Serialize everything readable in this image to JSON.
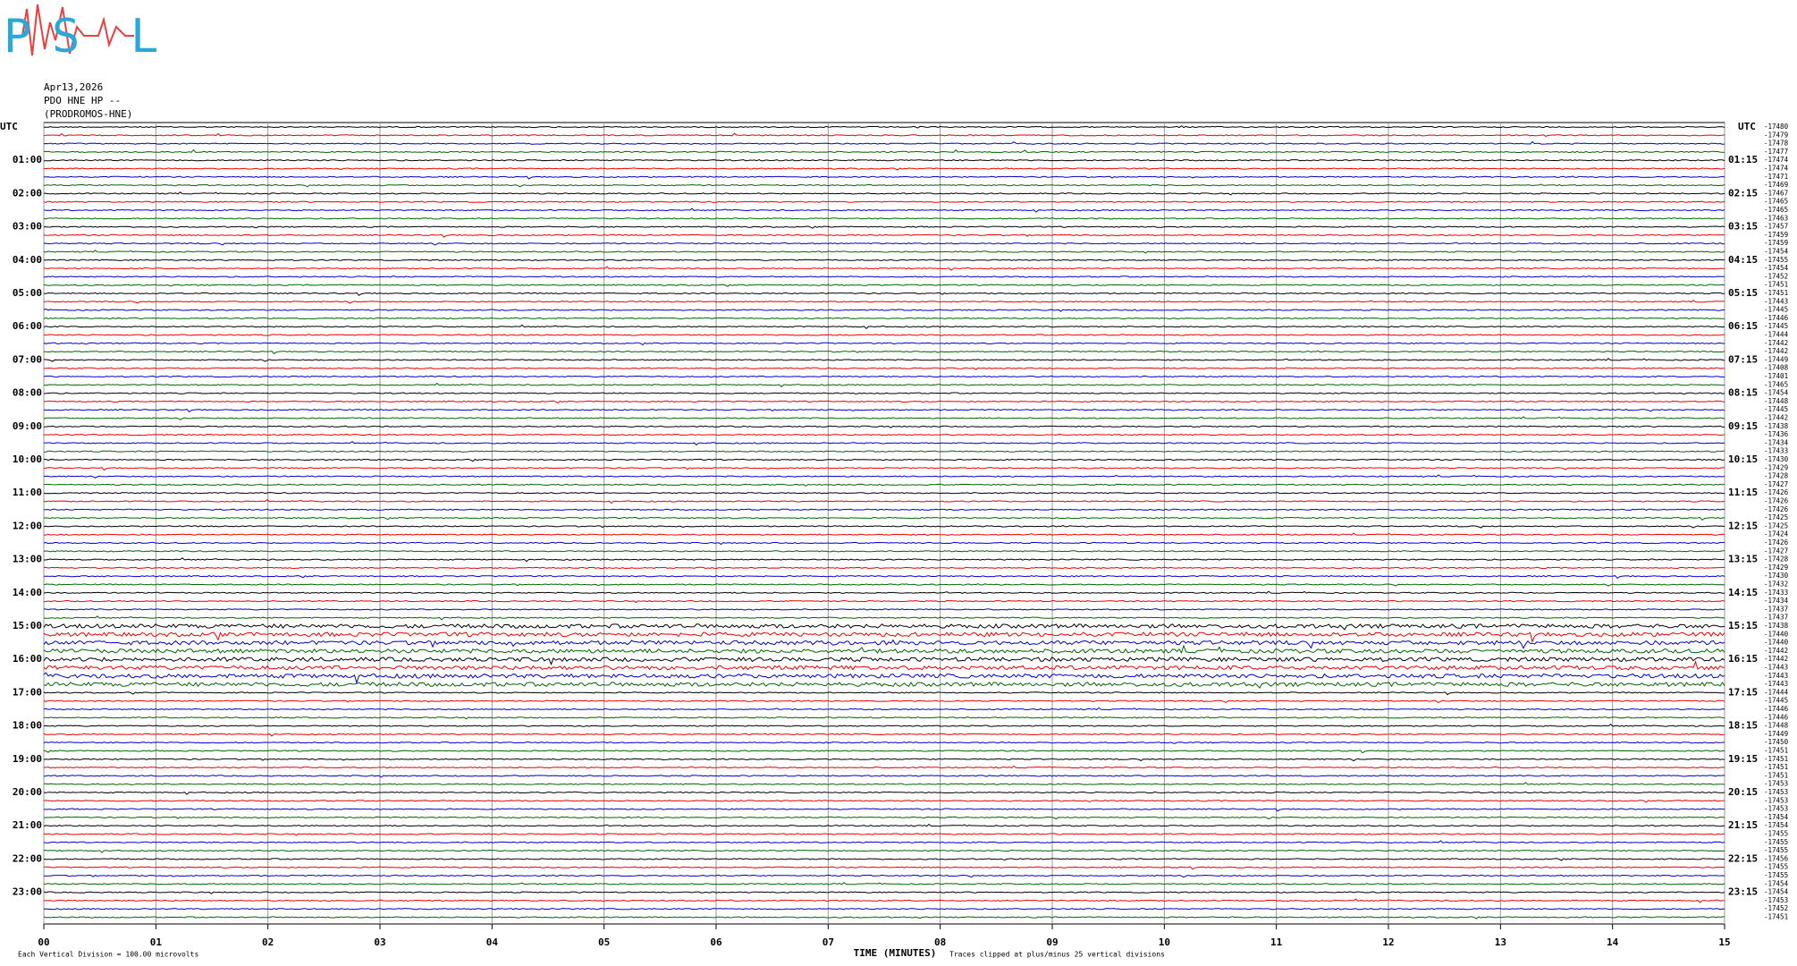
{
  "logo": {
    "letters": [
      "P",
      "S",
      "L"
    ]
  },
  "header": {
    "date": "Apr13,2026",
    "station": "PDO HNE HP --",
    "site": "(PRODROMOS-HNE)"
  },
  "left_labels": {
    "utc": "UTC",
    "hours": [
      "01:00",
      "02:00",
      "03:00",
      "04:00",
      "05:00",
      "06:00",
      "07:00",
      "08:00",
      "09:00",
      "10:00",
      "11:00",
      "12:00",
      "13:00",
      "14:00",
      "15:00",
      "16:00",
      "17:00",
      "18:00",
      "19:00",
      "20:00",
      "21:00",
      "22:00",
      "23:00"
    ]
  },
  "right_labels": {
    "utc": "UTC",
    "hours": [
      "01:15",
      "02:15",
      "03:15",
      "04:15",
      "05:15",
      "06:15",
      "07:15",
      "08:15",
      "09:15",
      "10:15",
      "11:15",
      "12:15",
      "13:15",
      "14:15",
      "15:15",
      "16:15",
      "17:15",
      "18:15",
      "19:15",
      "20:15",
      "21:15",
      "22:15",
      "23:15"
    ]
  },
  "trace_offsets": [
    -17480,
    -17479,
    -17478,
    -17477,
    -17474,
    -17474,
    -17471,
    -17469,
    -17467,
    -17465,
    -17465,
    -17463,
    -17457,
    -17459,
    -17459,
    -17454,
    -17455,
    -17454,
    -17452,
    -17451,
    -17451,
    -17443,
    -17445,
    -17446,
    -17445,
    -17444,
    -17442,
    -17442,
    -17449,
    -17408,
    -17401,
    -17465,
    -17454,
    -17448,
    -17445,
    -17442,
    -17438,
    -17436,
    -17434,
    -17433,
    -17430,
    -17429,
    -17428,
    -17427,
    -17426,
    -17426,
    -17426,
    -17425,
    -17425,
    -17424,
    -17426,
    -17427,
    -17428,
    -17429,
    -17430,
    -17432,
    -17433,
    -17434,
    -17437,
    -17437,
    -17438,
    -17440,
    -17440,
    -17442,
    -17442,
    -17443,
    -17443,
    -17443,
    -17444,
    -17445,
    -17446,
    -17446,
    -17448,
    -17449,
    -17450,
    -17451,
    -17451,
    -17451,
    -17451,
    -17453,
    -17453,
    -17453,
    -17453,
    -17454,
    -17454,
    -17455,
    -17455,
    -17455,
    -17456,
    -17455,
    -17455,
    -17454,
    -17454,
    -17453,
    -17452,
    -17451
  ],
  "x_ticks": [
    "00",
    "01",
    "02",
    "03",
    "04",
    "05",
    "06",
    "07",
    "08",
    "09",
    "10",
    "11",
    "12",
    "13",
    "14",
    "15"
  ],
  "footer": {
    "scale": "Each Vertical Division =  100.00 microvolts",
    "axis_title": "TIME (MINUTES)",
    "clip": "Traces clipped at plus/minus 25 vertical divisions"
  }
}
